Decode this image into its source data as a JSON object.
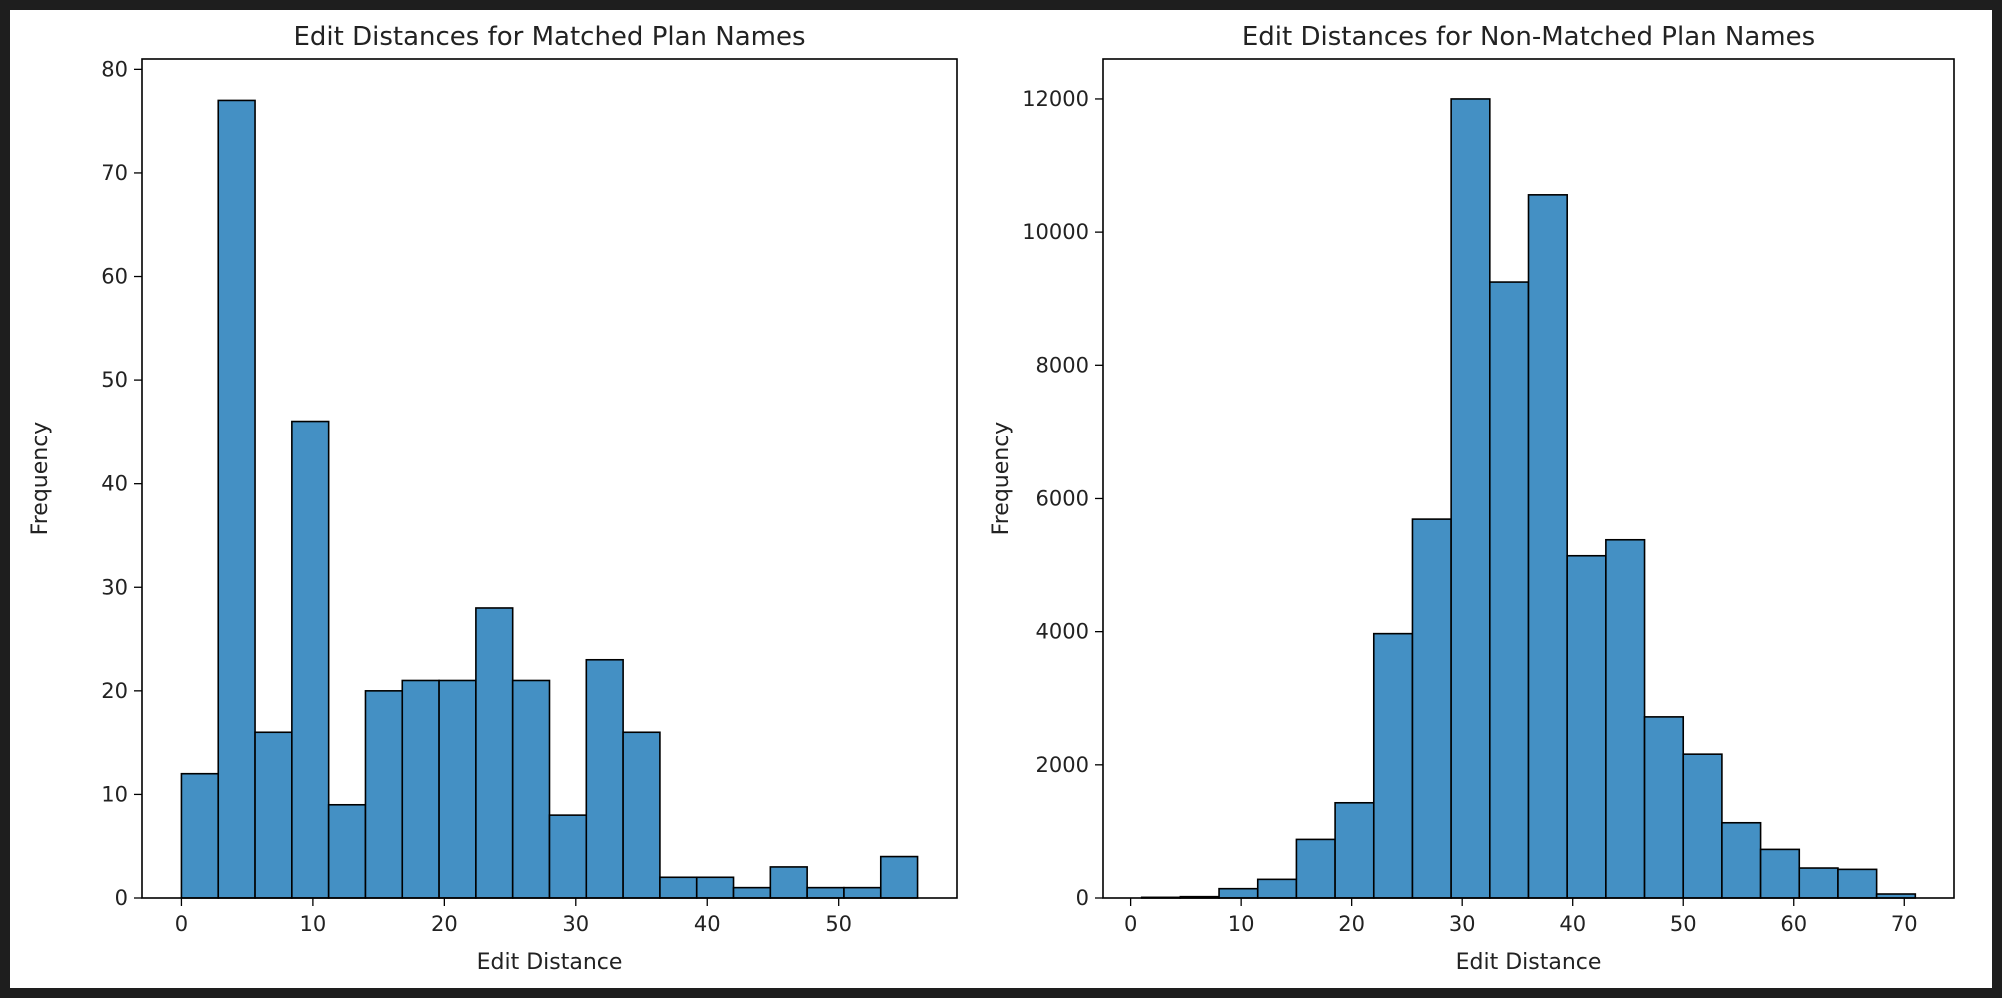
{
  "chart_data": [
    {
      "type": "bar",
      "title": "Edit Distances for Matched Plan Names",
      "xlabel": "Edit Distance",
      "ylabel": "Frequency",
      "xlim": [
        -3,
        59
      ],
      "ylim": [
        0,
        81
      ],
      "xticks": [
        0,
        10,
        20,
        30,
        40,
        50
      ],
      "yticks": [
        0,
        10,
        20,
        30,
        40,
        50,
        60,
        70,
        80
      ],
      "bin_edges": [
        0,
        2.8,
        5.6,
        8.4,
        11.2,
        14,
        16.8,
        19.6,
        22.4,
        25.2,
        28,
        30.8,
        33.6,
        36.4,
        39.2,
        42,
        44.8,
        47.6,
        50.4,
        53.2,
        56
      ],
      "values": [
        12,
        77,
        16,
        46,
        9,
        20,
        21,
        21,
        28,
        21,
        8,
        23,
        16,
        2,
        2,
        1,
        3,
        1,
        1,
        4
      ]
    },
    {
      "type": "bar",
      "title": "Edit Distances for Non-Matched Plan Names",
      "xlabel": "Edit Distance",
      "ylabel": "Frequency",
      "xlim": [
        -2.5,
        74.5
      ],
      "ylim": [
        0,
        12600
      ],
      "xticks": [
        0,
        10,
        20,
        30,
        40,
        50,
        60,
        70
      ],
      "yticks": [
        0,
        2000,
        4000,
        6000,
        8000,
        10000,
        12000
      ],
      "bin_edges": [
        1,
        4.5,
        8,
        11.5,
        15,
        18.5,
        22,
        25.5,
        29,
        32.5,
        36,
        39.5,
        43,
        46.5,
        50,
        53.5,
        57,
        60.5,
        64,
        67.5,
        71
      ],
      "values": [
        10,
        20,
        140,
        280,
        880,
        1430,
        3970,
        5690,
        12000,
        9250,
        10560,
        5140,
        5380,
        2720,
        2160,
        1130,
        730,
        450,
        430,
        60
      ]
    }
  ]
}
